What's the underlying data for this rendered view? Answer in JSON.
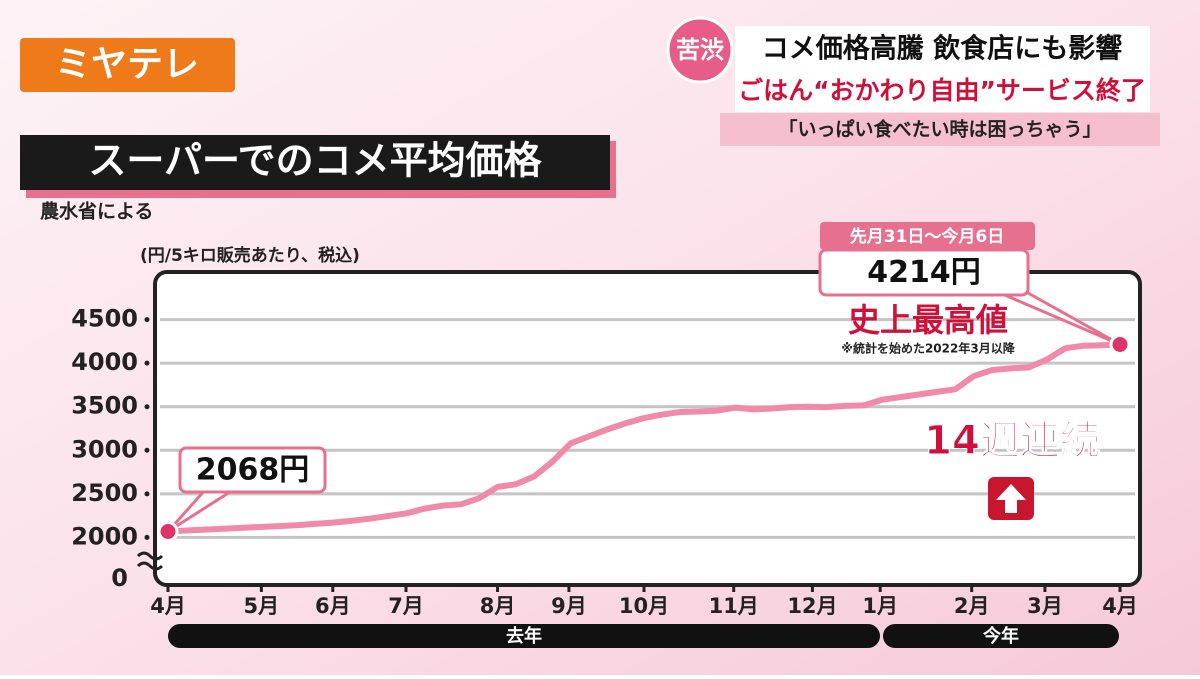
{
  "header": {
    "logo": "ミヤテレ",
    "badge": "苦渋",
    "headline": "コメ価格高騰 飲食店にも影響",
    "subheadline": "ごはん“おかわり自由”サービス終了",
    "quote": "「いっぱい食べたい時は困っちゃう」"
  },
  "chart_data": {
    "type": "line",
    "title": "スーパーでのコメ平均価格",
    "source": "農水省による",
    "unit": "(円/5キロ販売あたり、税込)",
    "x": [
      0,
      1,
      2,
      3,
      4,
      5,
      6,
      7,
      8,
      9,
      10,
      11,
      12,
      13,
      14,
      15,
      16,
      17,
      18,
      19,
      20,
      21,
      22,
      23,
      24,
      25,
      26,
      27,
      28,
      29,
      30,
      31,
      32,
      33,
      34,
      35,
      36,
      37,
      38,
      39,
      40,
      41,
      42,
      43,
      44,
      45,
      46,
      47,
      48,
      49,
      50,
      51,
      52
    ],
    "series": [
      {
        "name": "コメ平均価格",
        "color": "#f08aa8",
        "values": [
          2068,
          2080,
          2090,
          2100,
          2110,
          2120,
          2130,
          2140,
          2155,
          2170,
          2190,
          2215,
          2245,
          2275,
          2330,
          2365,
          2380,
          2450,
          2580,
          2610,
          2700,
          2870,
          3080,
          3160,
          3240,
          3310,
          3370,
          3410,
          3440,
          3445,
          3455,
          3490,
          3470,
          3480,
          3495,
          3500,
          3495,
          3510,
          3515,
          3580,
          3610,
          3640,
          3670,
          3700,
          3850,
          3920,
          3940,
          3950,
          4040,
          4170,
          4200,
          4205,
          4214
        ],
        "value_labels": [
          "2068円",
          null,
          null,
          null,
          null,
          null,
          null,
          null,
          null,
          null,
          null,
          null,
          null,
          null,
          null,
          null,
          null,
          null,
          null,
          null,
          null,
          null,
          null,
          null,
          null,
          null,
          null,
          null,
          null,
          null,
          null,
          null,
          null,
          null,
          null,
          null,
          null,
          null,
          null,
          null,
          null,
          null,
          null,
          null,
          null,
          null,
          null,
          null,
          null,
          null,
          null,
          null,
          "4214円"
        ]
      }
    ],
    "xlim": [
      0,
      52
    ],
    "xticks": [
      {
        "value": 0,
        "label": "4月"
      },
      {
        "value": 5.1,
        "label": "5月"
      },
      {
        "value": 9,
        "label": "6月"
      },
      {
        "value": 13,
        "label": "7月"
      },
      {
        "value": 18,
        "label": "8月"
      },
      {
        "value": 21.9,
        "label": "9月"
      },
      {
        "value": 26,
        "label": "10月"
      },
      {
        "value": 30.9,
        "label": "11月"
      },
      {
        "value": 35.2,
        "label": "12月"
      },
      {
        "value": 38.9,
        "label": "1月"
      },
      {
        "value": 43.9,
        "label": "2月"
      },
      {
        "value": 47.9,
        "label": "3月"
      },
      {
        "value": 52,
        "label": "4月"
      }
    ],
    "ylim": [
      1500,
      5000
    ],
    "yticks": [
      2000,
      2500,
      3000,
      3500,
      4000,
      4500
    ],
    "y_origin_label": "0",
    "grid": true,
    "period_labels": [
      "去年",
      "今年"
    ],
    "annotations": {
      "end_period": "先月31日～今月6日",
      "record": "史上最高値",
      "record_note": "※統計を始めた2022年3月以降",
      "streak": "14週連続"
    }
  }
}
